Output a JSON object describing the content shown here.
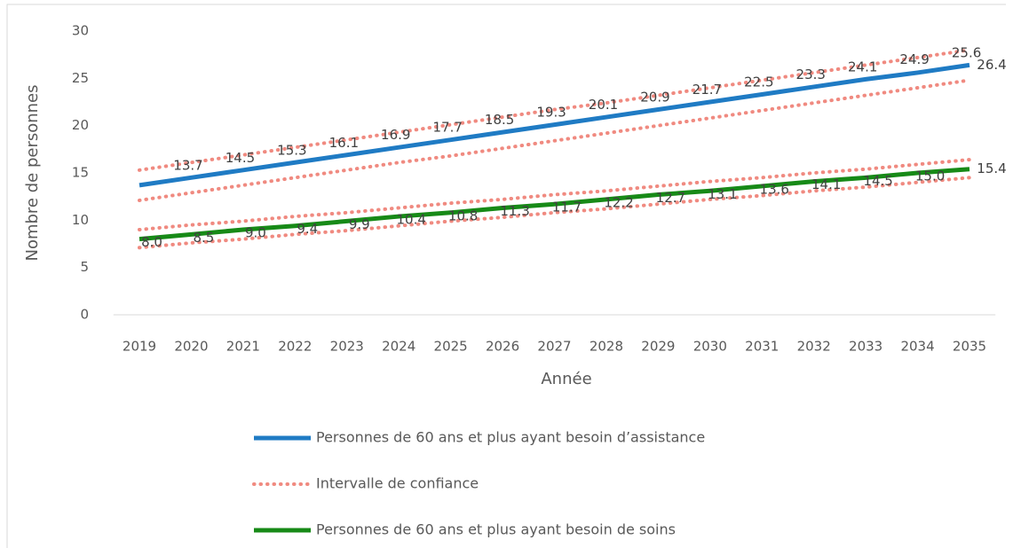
{
  "chart_data": {
    "type": "line",
    "x_label": "Année",
    "y_label": "Nombre de personnes",
    "categories": [
      "2019",
      "2020",
      "2021",
      "2022",
      "2023",
      "2024",
      "2025",
      "2026",
      "2027",
      "2028",
      "2029",
      "2030",
      "2031",
      "2032",
      "2033",
      "2034",
      "2035"
    ],
    "ylim": [
      0,
      30
    ],
    "yticks": [
      0,
      5,
      10,
      15,
      20,
      25,
      30
    ],
    "series": [
      {
        "name": "Personnes de 60 ans et plus ayant besoin d’assistance",
        "color": "#1f7bc4",
        "values": [
          13.7,
          14.5,
          15.3,
          16.1,
          16.9,
          17.7,
          18.5,
          19.3,
          20.1,
          20.9,
          21.7,
          22.5,
          23.3,
          24.1,
          24.9,
          25.6,
          26.4
        ]
      },
      {
        "name": "Personnes de 60 ans et plus ayant besoin de soins",
        "color": "#178a17",
        "values": [
          8.0,
          8.5,
          9.0,
          9.4,
          9.9,
          10.4,
          10.8,
          11.3,
          11.7,
          12.2,
          12.7,
          13.1,
          13.6,
          14.1,
          14.5,
          15.0,
          15.4
        ],
        "value_labels": [
          "8.0",
          "8.5",
          "9.0",
          "9.4",
          "9.9",
          "10.4",
          "10.8",
          "11.3",
          "11.7",
          "12.2",
          "12.7",
          "13.1",
          "13.6",
          "14.1",
          "14.5",
          "15.0",
          "15.4"
        ]
      }
    ],
    "confidence_interval": {
      "name": "Intervalle de confiance",
      "color": "#f08a80",
      "bands": [
        {
          "upper": [
            15.3,
            16.1,
            16.9,
            17.7,
            18.5,
            19.3,
            20.1,
            20.9,
            21.7,
            22.4,
            23.2,
            24.0,
            24.8,
            25.6,
            26.4,
            27.2,
            28.0
          ],
          "lower": [
            12.1,
            12.9,
            13.7,
            14.5,
            15.3,
            16.1,
            16.8,
            17.6,
            18.4,
            19.2,
            20.0,
            20.8,
            21.6,
            22.4,
            23.2,
            24.0,
            24.8
          ]
        },
        {
          "upper": [
            9.0,
            9.5,
            9.9,
            10.4,
            10.8,
            11.3,
            11.8,
            12.2,
            12.7,
            13.1,
            13.6,
            14.1,
            14.5,
            15.0,
            15.4,
            15.9,
            16.4
          ],
          "lower": [
            7.1,
            7.6,
            8.0,
            8.5,
            8.9,
            9.4,
            9.9,
            10.3,
            10.8,
            11.2,
            11.7,
            12.2,
            12.6,
            13.1,
            13.5,
            14.0,
            14.5
          ]
        }
      ]
    }
  }
}
